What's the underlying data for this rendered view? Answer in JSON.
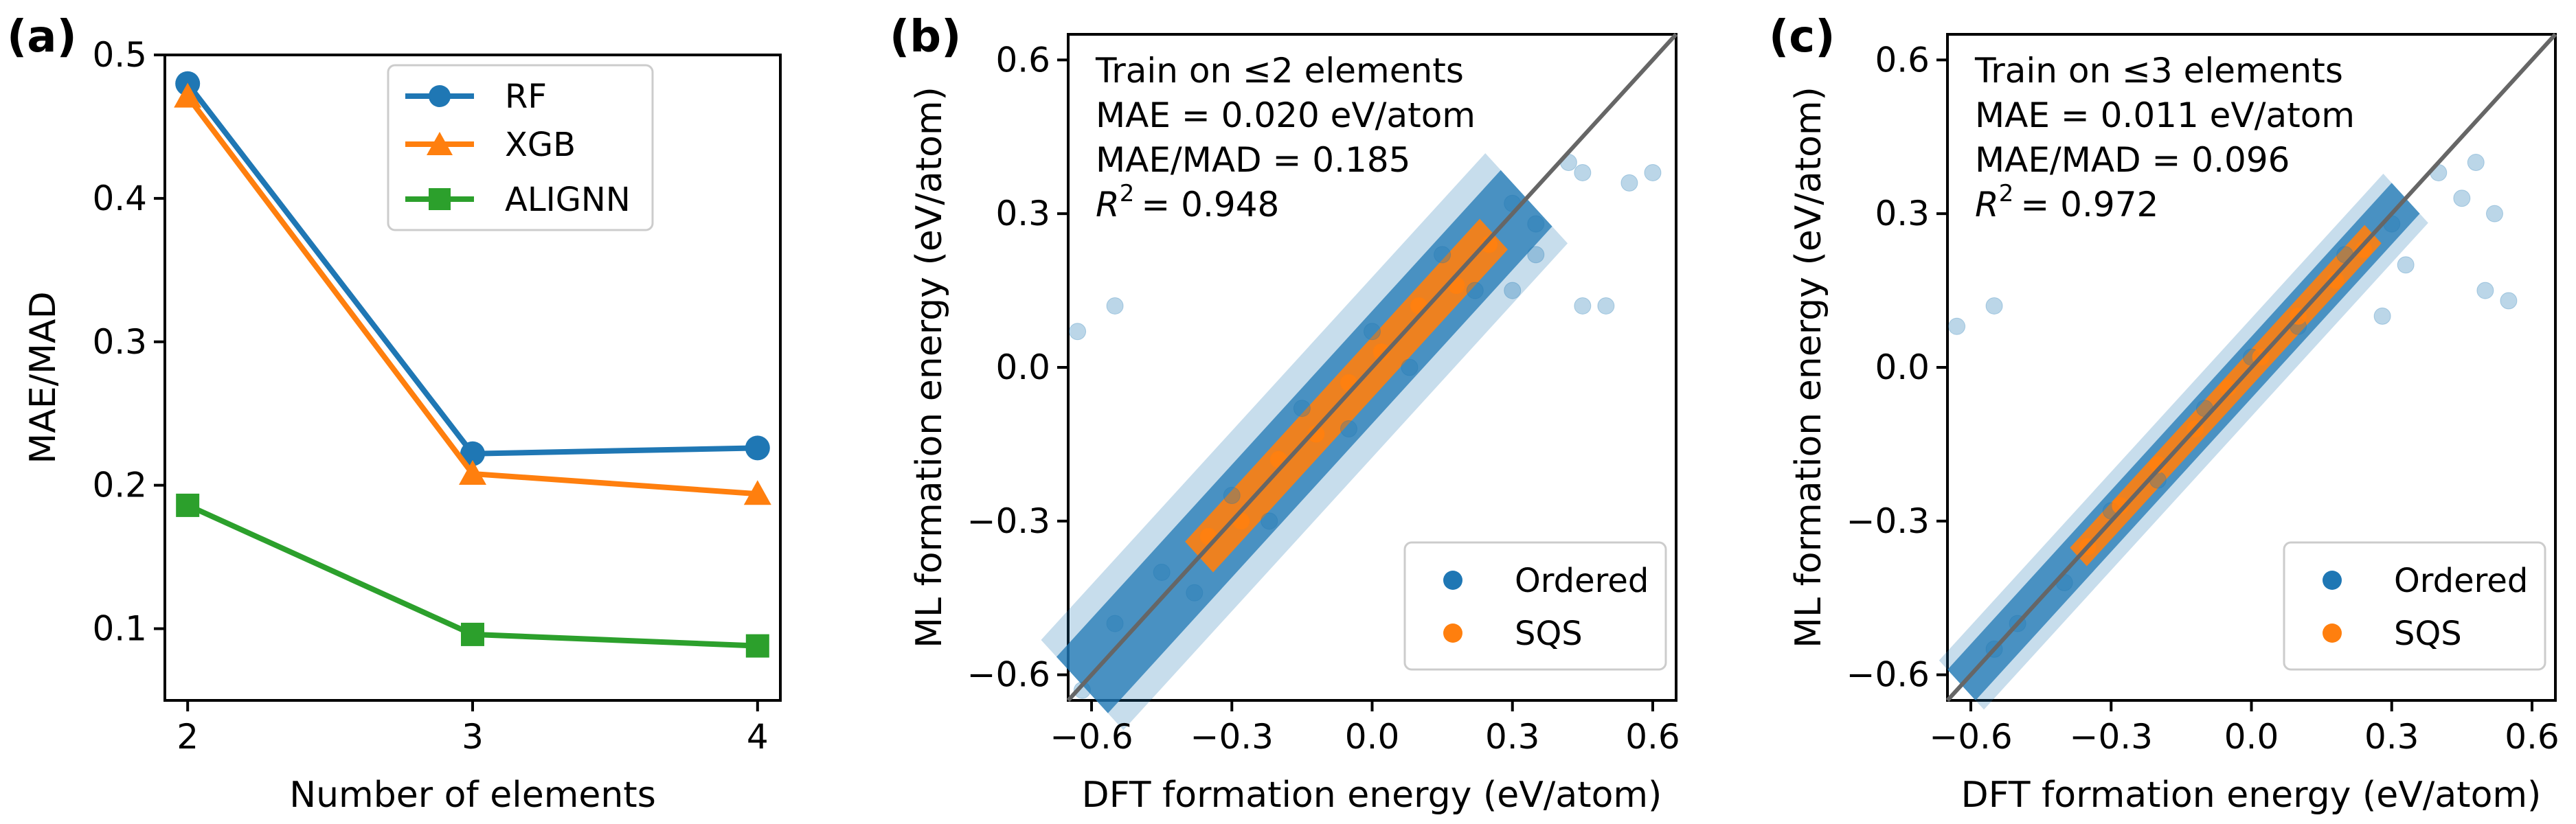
{
  "colors": {
    "rf": "#1f77b4",
    "xgb": "#ff7f0e",
    "alignn": "#2ca02c",
    "ordered": "#1f77b4",
    "sqs": "#ff7f0e",
    "diag": "#666666"
  },
  "chart_data": [
    {
      "panel": "(a)",
      "type": "line",
      "xlabel": "Number of elements",
      "ylabel": "MAE/MAD",
      "x": [
        2,
        3,
        4
      ],
      "xlim": [
        1.92,
        4.08
      ],
      "ylim": [
        0.05,
        0.5
      ],
      "xticks": [
        "2",
        "3",
        "4"
      ],
      "yticks": [
        "0.1",
        "0.2",
        "0.3",
        "0.4",
        "0.5"
      ],
      "series": [
        {
          "name": "RF",
          "marker": "circle",
          "values": [
            0.48,
            0.222,
            0.226
          ]
        },
        {
          "name": "XGB",
          "marker": "triangle",
          "values": [
            0.471,
            0.208,
            0.194
          ]
        },
        {
          "name": "ALIGNN",
          "marker": "square",
          "values": [
            0.186,
            0.096,
            0.088
          ]
        }
      ],
      "legend_position": "top-right"
    },
    {
      "panel": "(b)",
      "type": "scatter",
      "xlabel": "DFT formation energy (eV/atom)",
      "ylabel": "ML formation energy (eV/atom)",
      "xlim": [
        -0.65,
        0.65
      ],
      "ylim": [
        -0.65,
        0.65
      ],
      "xticks": [
        "−0.6",
        "−0.3",
        "0.0",
        "0.3",
        "0.6"
      ],
      "yticks": [
        "−0.6",
        "−0.3",
        "0.0",
        "0.3",
        "0.6"
      ],
      "annotations": [
        "Train on ≤2 elements",
        "MAE = 0.020 eV/atom",
        "MAE/MAD = 0.185",
        "= 0.948"
      ],
      "r2_symbol": "R",
      "r2_exp": "2",
      "series": [
        {
          "name": "Ordered",
          "points": [
            [
              -0.62,
              -0.63
            ],
            [
              -0.55,
              -0.5
            ],
            [
              -0.45,
              -0.4
            ],
            [
              -0.38,
              -0.44
            ],
            [
              -0.3,
              -0.25
            ],
            [
              -0.22,
              -0.3
            ],
            [
              -0.15,
              -0.08
            ],
            [
              -0.05,
              -0.12
            ],
            [
              0.0,
              0.07
            ],
            [
              0.08,
              0.0
            ],
            [
              0.15,
              0.22
            ],
            [
              0.22,
              0.15
            ],
            [
              0.3,
              0.32
            ],
            [
              0.35,
              0.28
            ],
            [
              0.42,
              0.4
            ],
            [
              0.45,
              0.38
            ],
            [
              0.55,
              0.36
            ],
            [
              0.6,
              0.38
            ],
            [
              -0.55,
              0.12
            ],
            [
              -0.63,
              0.07
            ],
            [
              0.3,
              0.15
            ],
            [
              0.45,
              0.12
            ],
            [
              0.5,
              0.12
            ],
            [
              0.35,
              0.22
            ]
          ]
        },
        {
          "name": "SQS",
          "points": [
            [
              -0.35,
              -0.33
            ],
            [
              -0.28,
              -0.3
            ],
            [
              -0.2,
              -0.18
            ],
            [
              -0.12,
              -0.13
            ],
            [
              -0.05,
              -0.03
            ],
            [
              0.02,
              0.03
            ],
            [
              0.1,
              0.12
            ],
            [
              0.18,
              0.16
            ],
            [
              0.25,
              0.24
            ]
          ]
        }
      ],
      "legend_position": "bottom-right"
    },
    {
      "panel": "(c)",
      "type": "scatter",
      "xlabel": "DFT formation energy (eV/atom)",
      "ylabel": "ML formation energy (eV/atom)",
      "xlim": [
        -0.65,
        0.65
      ],
      "ylim": [
        -0.65,
        0.65
      ],
      "xticks": [
        "−0.6",
        "−0.3",
        "0.0",
        "0.3",
        "0.6"
      ],
      "yticks": [
        "−0.6",
        "−0.3",
        "0.0",
        "0.3",
        "0.6"
      ],
      "annotations": [
        "Train on ≤3 elements",
        "MAE = 0.011 eV/atom",
        "MAE/MAD = 0.096",
        "= 0.972"
      ],
      "r2_symbol": "R",
      "r2_exp": "2",
      "series": [
        {
          "name": "Ordered",
          "points": [
            [
              -0.55,
              -0.55
            ],
            [
              -0.5,
              -0.5
            ],
            [
              -0.4,
              -0.42
            ],
            [
              -0.3,
              -0.28
            ],
            [
              -0.2,
              -0.22
            ],
            [
              -0.1,
              -0.08
            ],
            [
              0.0,
              0.02
            ],
            [
              0.1,
              0.08
            ],
            [
              0.2,
              0.22
            ],
            [
              0.3,
              0.28
            ],
            [
              0.4,
              0.38
            ],
            [
              0.48,
              0.4
            ],
            [
              0.52,
              0.3
            ],
            [
              0.45,
              0.33
            ],
            [
              0.5,
              0.15
            ],
            [
              0.55,
              0.13
            ],
            [
              -0.55,
              0.12
            ],
            [
              -0.63,
              0.08
            ],
            [
              0.28,
              0.1
            ],
            [
              0.33,
              0.2
            ]
          ]
        },
        {
          "name": "SQS",
          "points": [
            [
              -0.35,
              -0.35
            ],
            [
              -0.28,
              -0.27
            ],
            [
              -0.2,
              -0.19
            ],
            [
              -0.12,
              -0.12
            ],
            [
              -0.05,
              -0.04
            ],
            [
              0.02,
              0.02
            ],
            [
              0.1,
              0.1
            ],
            [
              0.18,
              0.17
            ],
            [
              0.24,
              0.23
            ]
          ]
        }
      ],
      "legend_position": "bottom-right"
    }
  ]
}
